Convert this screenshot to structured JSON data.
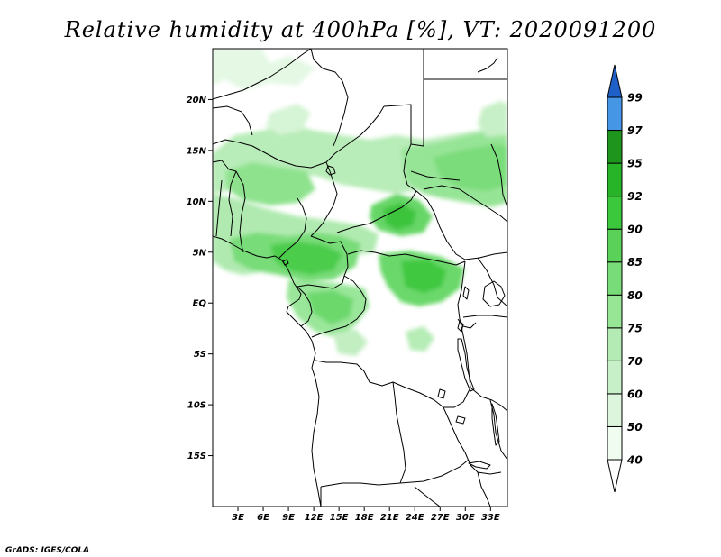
{
  "title": "Relative humidity at 400hPa [%], VT: 2020091200",
  "credit": "GrADS: IGES/COLA",
  "map": {
    "lon_range": [
      0,
      35
    ],
    "lat_range": [
      -20,
      25
    ],
    "lat_ticks": [
      {
        "value": 20,
        "label": "20N"
      },
      {
        "value": 15,
        "label": "15N"
      },
      {
        "value": 10,
        "label": "10N"
      },
      {
        "value": 5,
        "label": "5N"
      },
      {
        "value": 0,
        "label": "EQ"
      },
      {
        "value": -5,
        "label": "5S"
      },
      {
        "value": -10,
        "label": "10S"
      },
      {
        "value": -15,
        "label": "15S"
      }
    ],
    "lon_ticks": [
      {
        "value": 3,
        "label": "3E"
      },
      {
        "value": 6,
        "label": "6E"
      },
      {
        "value": 9,
        "label": "9E"
      },
      {
        "value": 12,
        "label": "12E"
      },
      {
        "value": 15,
        "label": "15E"
      },
      {
        "value": 18,
        "label": "18E"
      },
      {
        "value": 21,
        "label": "21E"
      },
      {
        "value": 24,
        "label": "24E"
      },
      {
        "value": 27,
        "label": "27E"
      },
      {
        "value": 30,
        "label": "30E"
      },
      {
        "value": 33,
        "label": "33E"
      }
    ]
  },
  "colorbar": {
    "levels": [
      "40",
      "50",
      "60",
      "70",
      "75",
      "80",
      "85",
      "90",
      "92",
      "95",
      "97",
      "99"
    ],
    "colors": [
      "#f0fcf0",
      "#dcf5dc",
      "#c8f0c8",
      "#b4ebb4",
      "#96e696",
      "#78dc78",
      "#5ad25a",
      "#3cc83c",
      "#28b428",
      "#1e961e",
      "#4696e6",
      "#2a78dc",
      "#1e5fc8"
    ]
  },
  "chart_data": {
    "type": "heatmap",
    "title": "Relative humidity at 400hPa [%], VT: 2020091200",
    "variable": "Relative humidity",
    "units": "%",
    "pressure_level": "400hPa",
    "valid_time": "2020091200",
    "contour_levels": [
      40,
      50,
      60,
      70,
      75,
      80,
      85,
      90,
      92,
      95,
      97,
      99
    ],
    "lon_range": [
      0,
      35
    ],
    "lat_range": [
      -20,
      25
    ],
    "humid_regions": [
      {
        "lon": [
          4,
          14
        ],
        "lat": [
          3,
          10
        ],
        "max": 85
      },
      {
        "lon": [
          18,
          24
        ],
        "lat": [
          7,
          12
        ],
        "max": 90
      },
      {
        "lon": [
          20,
          27
        ],
        "lat": [
          1,
          6
        ],
        "max": 88
      },
      {
        "lon": [
          24,
          35
        ],
        "lat": [
          9,
          17
        ],
        "max": 80
      },
      {
        "lon": [
          10,
          16
        ],
        "lat": [
          -4,
          1
        ],
        "max": 80
      },
      {
        "lon": [
          5,
          15
        ],
        "lat": [
          13,
          18
        ],
        "max": 70
      }
    ]
  }
}
